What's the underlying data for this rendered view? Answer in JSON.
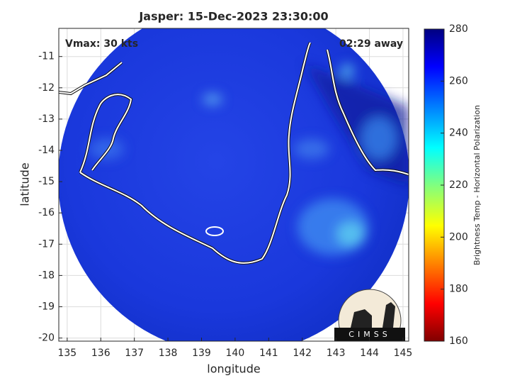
{
  "title": "Jasper: 15-Dec-2023 23:30:00",
  "annotations": {
    "intensity": "Vmax: 30 kts",
    "time_offset": "02:29 away"
  },
  "x_axis": {
    "label": "longitude",
    "lim": [
      134.75,
      145.17
    ],
    "ticks": [
      135,
      136,
      137,
      138,
      139,
      140,
      141,
      142,
      143,
      144,
      145
    ]
  },
  "y_axis": {
    "label": "latitude",
    "lim": [
      -20.1,
      -10.1
    ],
    "ticks": [
      -11,
      -12,
      -13,
      -14,
      -15,
      -16,
      -17,
      -18,
      -19,
      -20
    ]
  },
  "colorbar": {
    "label": "Brightness Temp - Horizontal Polarization",
    "lim": [
      160,
      280
    ],
    "ticks": [
      160,
      180,
      200,
      220,
      240,
      260,
      280
    ]
  },
  "logo": "CIMSS"
}
